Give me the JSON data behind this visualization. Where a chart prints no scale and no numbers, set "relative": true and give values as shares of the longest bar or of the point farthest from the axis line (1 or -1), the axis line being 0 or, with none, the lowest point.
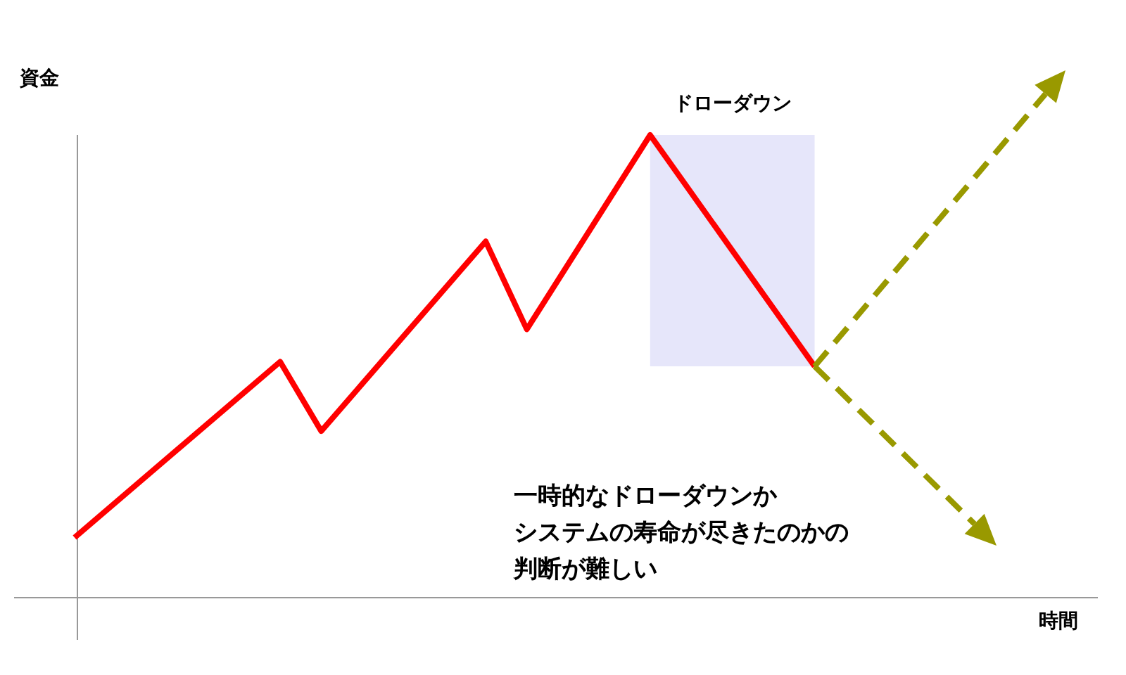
{
  "chart_data": {
    "type": "line",
    "relative": true,
    "xlabel": "時間",
    "ylabel": "資金",
    "categories": [
      null,
      null,
      null,
      null,
      null,
      null,
      null,
      null,
      null,
      null,
      null,
      null,
      null,
      null,
      null,
      null,
      null,
      null,
      null,
      null,
      null,
      null,
      null,
      null,
      null
    ],
    "series": [
      {
        "color": "#ff0000",
        "line_style": "solid",
        "values": [
          0.13,
          null,
          null,
          null,
          null,
          0.51,
          0.36,
          null,
          null,
          null,
          0.77,
          0.58,
          null,
          null,
          1,
          null,
          null,
          null,
          0.5,
          null,
          null,
          null,
          null,
          null,
          null
        ]
      }
    ],
    "bands": [
      {
        "axis": "y",
        "from": 0.5,
        "to": 1,
        "label": "ドローダウン",
        "color": "#e6e6fa"
      }
    ],
    "annotations": [
      "一時的なドローダウンか",
      "システムの寿命が尽きたのかの",
      "判断が難しい"
    ]
  }
}
